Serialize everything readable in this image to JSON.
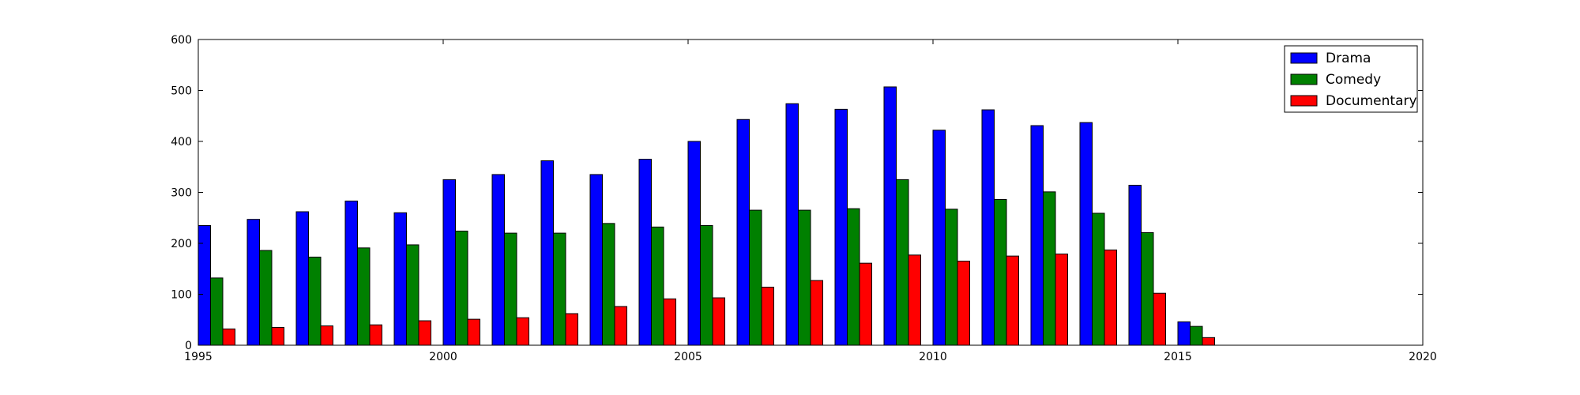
{
  "chart_data": {
    "type": "bar",
    "x": [
      1995,
      1996,
      1997,
      1998,
      1999,
      2000,
      2001,
      2002,
      2003,
      2004,
      2005,
      2006,
      2007,
      2008,
      2009,
      2010,
      2011,
      2012,
      2013,
      2014,
      2015
    ],
    "series": [
      {
        "name": "Drama",
        "color": "#0000ff",
        "values": [
          235,
          247,
          262,
          283,
          260,
          325,
          335,
          362,
          335,
          365,
          400,
          443,
          474,
          463,
          507,
          422,
          462,
          431,
          437,
          314,
          46
        ]
      },
      {
        "name": "Comedy",
        "color": "#008000",
        "values": [
          132,
          186,
          173,
          191,
          197,
          224,
          220,
          220,
          239,
          232,
          235,
          265,
          265,
          268,
          325,
          267,
          286,
          301,
          259,
          221,
          37
        ]
      },
      {
        "name": "Documentary",
        "color": "#ff0000",
        "values": [
          32,
          35,
          38,
          40,
          48,
          51,
          54,
          62,
          76,
          91,
          93,
          114,
          127,
          161,
          177,
          165,
          175,
          179,
          187,
          102,
          15
        ]
      }
    ],
    "xlim": [
      1995,
      2020
    ],
    "ylim": [
      0,
      600
    ],
    "xticks": [
      "1995",
      "2000",
      "2005",
      "2010",
      "2015",
      "2020"
    ],
    "yticks": [
      "0",
      "100",
      "200",
      "300",
      "400",
      "500",
      "600"
    ],
    "title": "",
    "xlabel": "",
    "ylabel": "",
    "grid": false,
    "legend_position": "top-right"
  }
}
